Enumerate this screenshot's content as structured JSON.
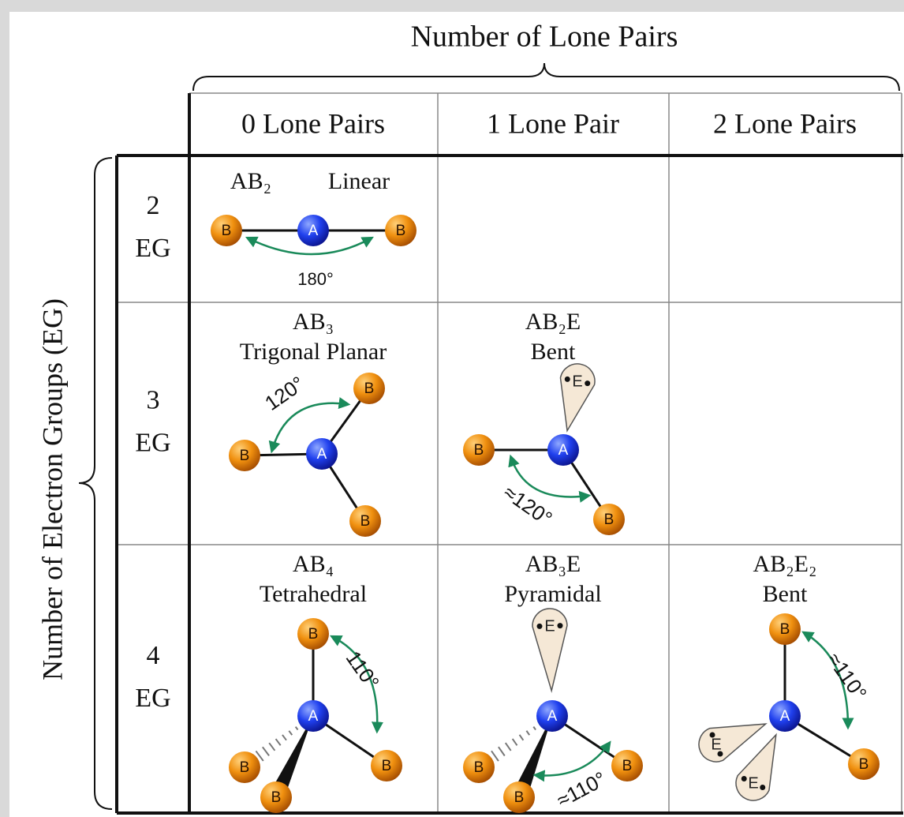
{
  "title": "Number of Lone Pairs",
  "side_label": "Number of Electron Groups (EG)",
  "columns": [
    "0 Lone Pairs",
    "1 Lone Pair",
    "2 Lone Pairs"
  ],
  "rows": [
    {
      "count": "2",
      "unit": "EG",
      "cells": [
        {
          "formula": "AB₂",
          "name": "Linear",
          "angle": "180°",
          "atoms": [
            "B",
            "A",
            "B"
          ]
        },
        null,
        null
      ]
    },
    {
      "count": "3",
      "unit": "EG",
      "cells": [
        {
          "formula": "AB₃",
          "name": "Trigonal Planar",
          "angle": "120°",
          "atoms": [
            "B",
            "A",
            "B",
            "B"
          ]
        },
        {
          "formula": "AB₂E",
          "name": "Bent",
          "angle": "≈120°",
          "atoms": [
            "B",
            "A",
            "E",
            "B"
          ]
        },
        null
      ]
    },
    {
      "count": "4",
      "unit": "EG",
      "cells": [
        {
          "formula": "AB₄",
          "name": "Tetrahedral",
          "angle": "110°",
          "atoms": [
            "B",
            "A",
            "B",
            "B",
            "B"
          ]
        },
        {
          "formula": "AB₃E",
          "name": "Pyramidal",
          "angle": "≈110°",
          "atoms": [
            "E",
            "A",
            "B",
            "B",
            "B"
          ]
        },
        {
          "formula": "AB₂E₂",
          "name": "Bent",
          "angle": "≈110°",
          "atoms": [
            "B",
            "A",
            "E",
            "E",
            "B"
          ]
        }
      ]
    }
  ]
}
